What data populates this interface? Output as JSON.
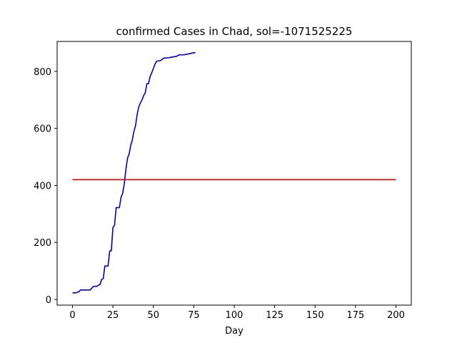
{
  "chart_data": {
    "type": "line",
    "title": "confirmed Cases in Chad, sol=-1071525225",
    "xlabel": "Day",
    "ylabel": "",
    "xlim": [
      -9.5,
      209.5
    ],
    "ylim": [
      -20,
      905
    ],
    "xticks": [
      0,
      25,
      50,
      75,
      100,
      125,
      150,
      175,
      200
    ],
    "yticks": [
      0,
      200,
      400,
      600,
      800
    ],
    "grid": false,
    "legend": "none",
    "series": [
      {
        "color": "#0000cc",
        "x": [
          0,
          1,
          2,
          3,
          4,
          5,
          6,
          7,
          8,
          9,
          10,
          11,
          12,
          13,
          14,
          15,
          16,
          17,
          18,
          19,
          20,
          21,
          22,
          23,
          24,
          25,
          26,
          27,
          28,
          29,
          30,
          31,
          32,
          33,
          34,
          35,
          36,
          37,
          38,
          39,
          40,
          41,
          42,
          43,
          44,
          45,
          46,
          47,
          48,
          49,
          50,
          51,
          52,
          53,
          54,
          55,
          56,
          57,
          58,
          59,
          60,
          61,
          62,
          63,
          64,
          65,
          66,
          67,
          68,
          69,
          70,
          71,
          72,
          73,
          74,
          75,
          76
        ],
        "y": [
          23,
          23,
          23,
          25,
          27,
          33,
          33,
          33,
          33,
          33,
          33,
          33,
          40,
          46,
          46,
          46,
          50,
          52,
          70,
          73,
          117,
          117,
          117,
          170,
          170,
          252,
          260,
          322,
          322,
          322,
          358,
          372,
          405,
          455,
          495,
          510,
          540,
          560,
          590,
          610,
          650,
          675,
          690,
          700,
          715,
          725,
          757,
          757,
          782,
          795,
          810,
          825,
          835,
          837,
          837,
          840,
          845,
          847,
          847,
          848,
          848,
          850,
          850,
          852,
          852,
          855,
          858,
          858,
          858,
          858,
          860,
          860,
          862,
          862,
          865,
          865,
          866
        ]
      },
      {
        "color": "#cc0000",
        "x": [
          0,
          200
        ],
        "y": [
          420,
          420
        ]
      }
    ]
  }
}
